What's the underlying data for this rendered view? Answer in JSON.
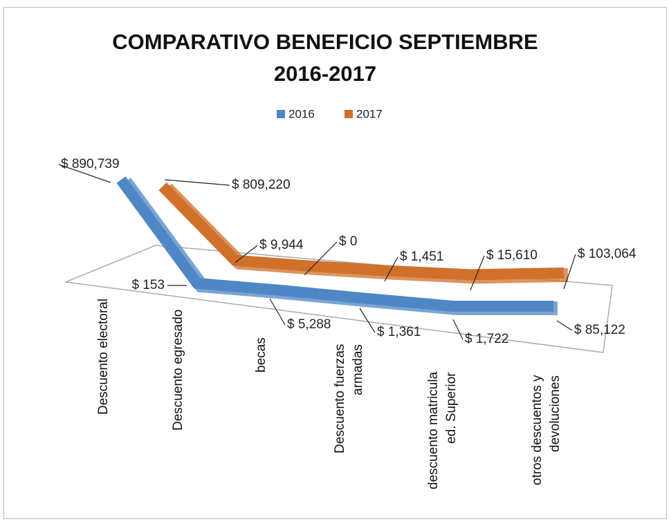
{
  "chart_data": {
    "type": "line3d",
    "title": "COMPARATIVO BENEFICIO SEPTIEMBRE 2016-2017",
    "categories": [
      "Descuento electoral",
      "Descuento egresado",
      "becas",
      "Descuento fuerzas armadas",
      "descuento matricula ed. Superior",
      "otros descuentos y devoluciones"
    ],
    "series": [
      {
        "name": "2016",
        "color": "#4f86c6",
        "values": [
          890739,
          153,
          5288,
          1361,
          1722,
          85122
        ],
        "value_labels": [
          "$ 890,739",
          "$ 153",
          "$ 5,288",
          "$ 1,361",
          "$ 1,722",
          "$ 85,122"
        ]
      },
      {
        "name": "2017",
        "color": "#d0702a",
        "values": [
          809220,
          9944,
          0,
          1451,
          15610,
          103064
        ],
        "value_labels": [
          "$ 809,220",
          "$ 9,944",
          "$ 0",
          "$ 1,451",
          "$ 15,610",
          "$ 103,064"
        ]
      }
    ],
    "legend": "top"
  }
}
